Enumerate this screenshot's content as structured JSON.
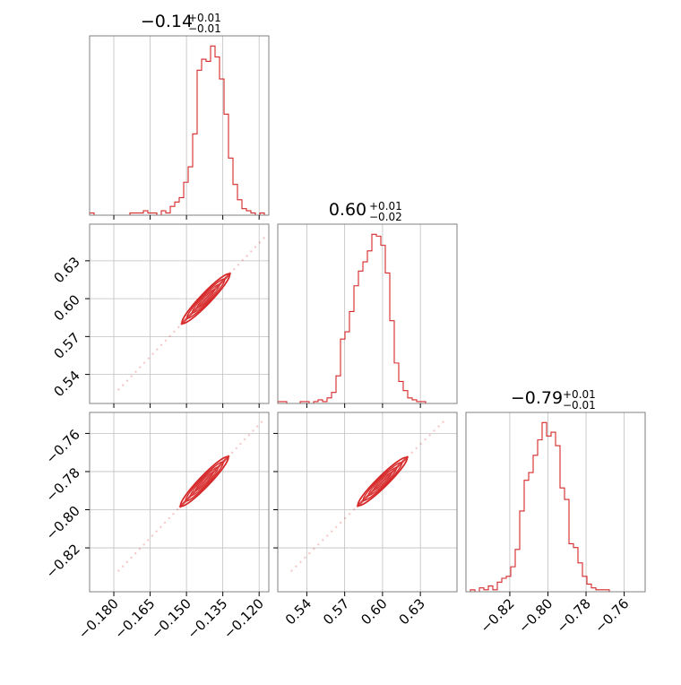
{
  "colors": {
    "series": "#d62728",
    "grid": "#bfbfbf",
    "frame": "#808080"
  },
  "chart_data": {
    "type": "corner",
    "parameters": [
      {
        "title_main": "−0.14",
        "title_plus": "+0.01",
        "title_minus": "−0.01",
        "range": [
          -0.19,
          -0.116
        ],
        "ticks": [
          -0.18,
          -0.165,
          -0.15,
          -0.135,
          -0.12
        ],
        "tick_labels": [
          "−0.180",
          "−0.165",
          "−0.150",
          "−0.135",
          "−0.120"
        ]
      },
      {
        "title_main": "0.60",
        "title_plus": "+0.01",
        "title_minus": "−0.02",
        "range": [
          0.517,
          0.659
        ],
        "ticks": [
          0.54,
          0.57,
          0.6,
          0.63
        ],
        "tick_labels": [
          "0.54",
          "0.57",
          "0.60",
          "0.63"
        ]
      },
      {
        "title_main": "−0.79",
        "title_plus": "+0.01",
        "title_minus": "−0.01",
        "range": [
          -0.843,
          -0.749
        ],
        "ticks": [
          -0.82,
          -0.8,
          -0.78,
          -0.76
        ],
        "tick_labels": [
          "−0.82",
          "−0.80",
          "−0.78",
          "−0.76"
        ]
      }
    ],
    "histograms": [
      {
        "param": 0,
        "bin_edges_start": -0.19,
        "bin_edges_end": -0.116,
        "counts": [
          1,
          0,
          0,
          0,
          0,
          0,
          0,
          0,
          0,
          1,
          1,
          1,
          2,
          1,
          1,
          0,
          2,
          1,
          4,
          6,
          8,
          15,
          22,
          37,
          66,
          71,
          70,
          77,
          72,
          62,
          46,
          26,
          14,
          7,
          3,
          2,
          1,
          0,
          1,
          0
        ]
      },
      {
        "param": 1,
        "bin_edges_start": 0.517,
        "bin_edges_end": 0.659,
        "counts": [
          1,
          1,
          0,
          0,
          0,
          1,
          1,
          0,
          1,
          2,
          1,
          3,
          6,
          15,
          35,
          39,
          50,
          64,
          72,
          77,
          83,
          92,
          91,
          86,
          71,
          45,
          22,
          12,
          7,
          3,
          2,
          1,
          1,
          0,
          0,
          0,
          0,
          0,
          0,
          0
        ]
      },
      {
        "param": 2,
        "bin_edges_start": -0.843,
        "bin_edges_end": -0.749,
        "counts": [
          0,
          1,
          0,
          2,
          1,
          3,
          1,
          5,
          7,
          8,
          13,
          22,
          42,
          58,
          62,
          71,
          79,
          88,
          81,
          83,
          76,
          54,
          48,
          25,
          23,
          15,
          8,
          4,
          2,
          1,
          1,
          1,
          0,
          0,
          0,
          0,
          0,
          0,
          0,
          0
        ]
      }
    ],
    "pair_panels": [
      {
        "x_param": 0,
        "y_param": 1,
        "trend": {
          "x": [
            -0.178,
            -0.118
          ],
          "y": [
            0.528,
            0.648
          ]
        }
      },
      {
        "x_param": 0,
        "y_param": 2,
        "trend": {
          "x": [
            -0.178,
            -0.119
          ],
          "y": [
            -0.832,
            -0.754
          ]
        }
      },
      {
        "x_param": 1,
        "y_param": 2,
        "trend": {
          "x": [
            0.528,
            0.648
          ],
          "y": [
            -0.832,
            -0.754
          ]
        }
      }
    ],
    "grid": true
  }
}
